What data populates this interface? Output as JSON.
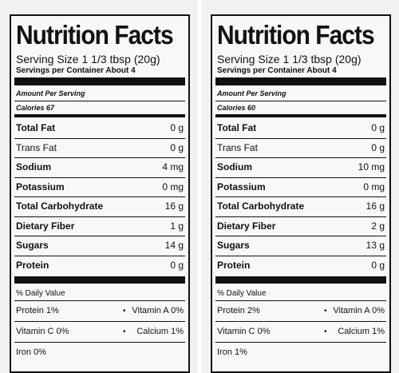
{
  "labels": [
    {
      "title": "Nutrition Facts",
      "serving_size": "Serving Size 1 1/3 tbsp (20g)",
      "servings_per_container": "Servings per Container About 4",
      "amount_per_serving": "Amount Per Serving",
      "calories": "Calories 67",
      "rows": [
        {
          "name": "Total Fat",
          "value": "0 g"
        },
        {
          "name": "Trans Fat",
          "value": "0 g"
        },
        {
          "name": "Sodium",
          "value": "4 mg"
        },
        {
          "name": "Potassium",
          "value": "0 mg"
        },
        {
          "name": "Total Carbohydrate",
          "value": "16 g"
        },
        {
          "name": "Dietary Fiber",
          "value": "1 g"
        },
        {
          "name": "Sugars",
          "value": "14 g"
        },
        {
          "name": "Protein",
          "value": "0 g"
        }
      ],
      "daily_value": "% Daily Value",
      "vitamins": [
        [
          "Protein 1%",
          "Vitamin A 0%"
        ],
        [
          "Vitamin C 0%",
          "Calcium 1%"
        ],
        [
          "Iron 0%"
        ]
      ]
    },
    {
      "title": "Nutrition Facts",
      "serving_size": "Serving Size 1 1/3 tbsp (20g)",
      "servings_per_container": "Servings per Container About 4",
      "amount_per_serving": "Amount Per Serving",
      "calories": "Calories 60",
      "rows": [
        {
          "name": "Total Fat",
          "value": "0 g"
        },
        {
          "name": "Trans Fat",
          "value": "0 g"
        },
        {
          "name": "Sodium",
          "value": "10 mg"
        },
        {
          "name": "Potassium",
          "value": "0 mg"
        },
        {
          "name": "Total Carbohydrate",
          "value": "16 g"
        },
        {
          "name": "Dietary Fiber",
          "value": "2 g"
        },
        {
          "name": "Sugars",
          "value": "13 g"
        },
        {
          "name": "Protein",
          "value": "0 g"
        }
      ],
      "daily_value": "% Daily Value",
      "vitamins": [
        [
          "Protein 2%",
          "Vitamin A 0%"
        ],
        [
          "Vitamin C 0%",
          "Calcium 1%"
        ],
        [
          "Iron 1%"
        ]
      ]
    }
  ]
}
